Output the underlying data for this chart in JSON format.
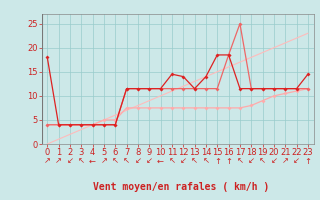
{
  "xlabel": "Vent moyen/en rafales ( km/h )",
  "x_values": [
    0,
    1,
    2,
    3,
    4,
    5,
    6,
    7,
    8,
    9,
    10,
    11,
    12,
    13,
    14,
    15,
    16,
    17,
    18,
    19,
    20,
    21,
    22,
    23
  ],
  "line1": [
    18,
    4,
    4,
    4,
    4,
    4,
    4,
    11.5,
    11.5,
    11.5,
    11.5,
    14.5,
    14,
    11.5,
    14,
    18.5,
    18.5,
    11.5,
    11.5,
    11.5,
    11.5,
    11.5,
    11.5,
    14.5
  ],
  "line2": [
    4,
    4,
    4,
    4,
    4,
    4,
    4,
    11.5,
    11.5,
    11.5,
    11.5,
    11.5,
    11.5,
    11.5,
    11.5,
    11.5,
    18.5,
    25,
    11.5,
    11.5,
    11.5,
    11.5,
    11.5,
    11.5
  ],
  "line3": [
    4,
    4,
    4,
    4,
    4,
    5,
    5,
    7.5,
    7.5,
    7.5,
    7.5,
    7.5,
    7.5,
    7.5,
    7.5,
    7.5,
    7.5,
    7.5,
    8,
    9,
    10,
    10.5,
    11,
    11.5
  ],
  "line_diag": [
    0,
    1,
    2,
    3,
    4,
    5,
    6,
    7,
    8,
    9,
    10,
    11,
    12,
    13,
    14,
    15,
    16,
    17,
    18,
    19,
    20,
    21,
    22,
    23
  ],
  "bg_color": "#cce8e8",
  "grid_color": "#99cccc",
  "line_color1": "#dd2222",
  "line_color2": "#ee6666",
  "line_color3": "#ffaaaa",
  "line_color_diag": "#ffbbbb",
  "tick_color": "#cc2222",
  "label_color": "#cc2222",
  "yticks": [
    0,
    5,
    10,
    15,
    20,
    25
  ],
  "ylim": [
    0,
    27
  ],
  "xlim": [
    -0.5,
    23.5
  ],
  "arrows": [
    "↗",
    "↗",
    "↙",
    "↖",
    "←",
    "↗",
    "↖",
    "↖",
    "↙",
    "↙",
    "←",
    "↖",
    "↙",
    "↖",
    "↖",
    "↑",
    "↑",
    "↖",
    "↙",
    "↖",
    "↙",
    "↗",
    "↙",
    "↑"
  ],
  "font_size_label": 7,
  "font_size_tick": 6,
  "font_size_arrow": 6
}
